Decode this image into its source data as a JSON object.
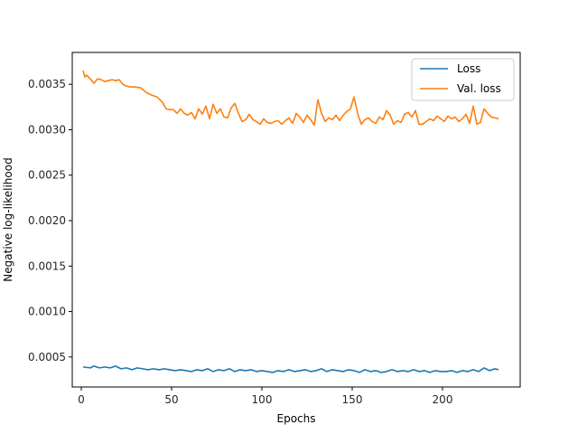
{
  "chart_data": {
    "type": "line",
    "title": "",
    "xlabel": "Epochs",
    "ylabel": "Negative log-likelihood",
    "xlim": [
      -5,
      243
    ],
    "ylim": [
      0.00017,
      0.00385
    ],
    "xticks": [
      0,
      50,
      100,
      150,
      200
    ],
    "xtick_labels": [
      "0",
      "50",
      "100",
      "150",
      "200"
    ],
    "yticks": [
      0.0005,
      0.001,
      0.0015,
      0.002,
      0.0025,
      0.003,
      0.0035
    ],
    "ytick_labels": [
      "0.0005",
      "0.0010",
      "0.0015",
      "0.0020",
      "0.0025",
      "0.0030",
      "0.0035"
    ],
    "grid": false,
    "legend_position": "top-right",
    "series": [
      {
        "name": "Loss",
        "color": "#1f77b4",
        "x": [
          1,
          5,
          7,
          10,
          13,
          16,
          19,
          22,
          25,
          28,
          31,
          34,
          37,
          40,
          43,
          46,
          49,
          52,
          55,
          58,
          61,
          64,
          67,
          70,
          73,
          76,
          79,
          82,
          85,
          88,
          91,
          94,
          97,
          100,
          103,
          106,
          109,
          112,
          115,
          118,
          121,
          124,
          127,
          130,
          133,
          136,
          139,
          142,
          145,
          148,
          151,
          154,
          157,
          160,
          163,
          166,
          169,
          172,
          175,
          178,
          181,
          184,
          187,
          190,
          193,
          196,
          199,
          202,
          205,
          208,
          211,
          214,
          217,
          220,
          223,
          226,
          229,
          231
        ],
        "y": [
          0.00039,
          0.00038,
          0.0004,
          0.00038,
          0.00039,
          0.00038,
          0.0004,
          0.00037,
          0.00038,
          0.00036,
          0.00038,
          0.00037,
          0.00036,
          0.00037,
          0.00036,
          0.00037,
          0.00036,
          0.00035,
          0.00036,
          0.00035,
          0.00034,
          0.00036,
          0.00035,
          0.00037,
          0.00034,
          0.00036,
          0.00035,
          0.00037,
          0.00034,
          0.00036,
          0.00035,
          0.00036,
          0.00034,
          0.00035,
          0.00034,
          0.00033,
          0.00035,
          0.00034,
          0.00036,
          0.00034,
          0.00035,
          0.00036,
          0.00034,
          0.00035,
          0.00037,
          0.00034,
          0.00036,
          0.00035,
          0.00034,
          0.00036,
          0.00035,
          0.00033,
          0.00036,
          0.00034,
          0.00035,
          0.00033,
          0.00034,
          0.00036,
          0.00034,
          0.00035,
          0.00034,
          0.00036,
          0.00034,
          0.00035,
          0.00033,
          0.00035,
          0.00034,
          0.00034,
          0.00035,
          0.00033,
          0.00035,
          0.00034,
          0.00036,
          0.00034,
          0.00038,
          0.00035,
          0.00037,
          0.00036
        ]
      },
      {
        "name": "Val. loss",
        "color": "#ff7f0e",
        "x": [
          1,
          2,
          3,
          5,
          7,
          9,
          11,
          13,
          15,
          17,
          19,
          21,
          23,
          25,
          27,
          30,
          33,
          36,
          39,
          42,
          45,
          47,
          49,
          51,
          53,
          55,
          57,
          59,
          61,
          63,
          65,
          67,
          69,
          71,
          73,
          75,
          77,
          79,
          81,
          83,
          85,
          87,
          89,
          91,
          93,
          95,
          97,
          99,
          101,
          103,
          105,
          107,
          109,
          111,
          113,
          115,
          117,
          119,
          121,
          123,
          125,
          127,
          129,
          131,
          133,
          135,
          137,
          139,
          141,
          143,
          145,
          147,
          149,
          151,
          153,
          155,
          157,
          159,
          161,
          163,
          165,
          167,
          169,
          171,
          173,
          175,
          177,
          179,
          181,
          183,
          185,
          187,
          189,
          191,
          193,
          195,
          197,
          199,
          201,
          203,
          205,
          207,
          209,
          211,
          213,
          215,
          217,
          219,
          221,
          223,
          225,
          227,
          229,
          231
        ],
        "y": [
          0.00365,
          0.00358,
          0.0036,
          0.00356,
          0.00351,
          0.00356,
          0.00355,
          0.00353,
          0.00354,
          0.00355,
          0.00354,
          0.00355,
          0.0035,
          0.00348,
          0.00347,
          0.00347,
          0.00346,
          0.00341,
          0.00338,
          0.00336,
          0.0033,
          0.00323,
          0.00322,
          0.00322,
          0.00318,
          0.00323,
          0.00318,
          0.00316,
          0.00319,
          0.00312,
          0.00323,
          0.00317,
          0.00326,
          0.00312,
          0.00328,
          0.00318,
          0.00323,
          0.00314,
          0.00313,
          0.00324,
          0.00329,
          0.00318,
          0.00309,
          0.00311,
          0.00317,
          0.00311,
          0.00309,
          0.00306,
          0.00312,
          0.00308,
          0.00307,
          0.00309,
          0.0031,
          0.00306,
          0.0031,
          0.00313,
          0.00307,
          0.00318,
          0.00314,
          0.00308,
          0.00316,
          0.00311,
          0.00305,
          0.00333,
          0.00318,
          0.00309,
          0.00313,
          0.00311,
          0.00316,
          0.0031,
          0.00316,
          0.0032,
          0.00323,
          0.00336,
          0.00318,
          0.00306,
          0.00311,
          0.00313,
          0.00309,
          0.00307,
          0.00314,
          0.00311,
          0.00321,
          0.00316,
          0.00306,
          0.0031,
          0.00308,
          0.00317,
          0.00319,
          0.00314,
          0.00321,
          0.00306,
          0.00306,
          0.00309,
          0.00312,
          0.0031,
          0.00315,
          0.00312,
          0.00309,
          0.00315,
          0.00312,
          0.00314,
          0.00309,
          0.00312,
          0.00317,
          0.00307,
          0.00326,
          0.00306,
          0.00308,
          0.00323,
          0.00318,
          0.00314,
          0.00313,
          0.00312
        ]
      }
    ]
  }
}
